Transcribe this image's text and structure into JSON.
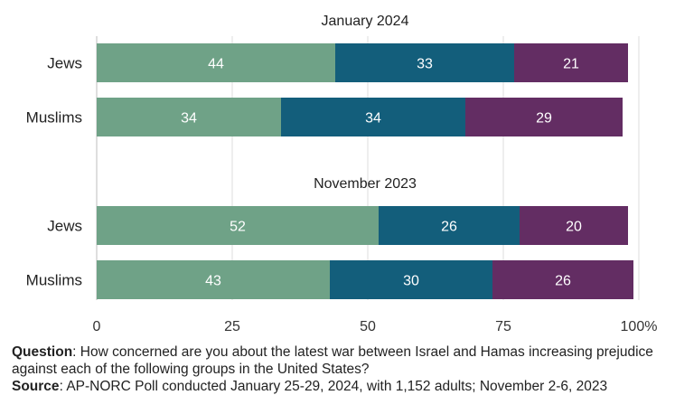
{
  "chart_data": {
    "type": "bar",
    "orientation": "horizontal",
    "stacked": true,
    "xlim": [
      0,
      100
    ],
    "x_ticks": [
      "0",
      "25",
      "50",
      "75",
      "100%"
    ],
    "grid": true,
    "colors": [
      "#6fa287",
      "#135e7b",
      "#632d63"
    ],
    "panels": [
      {
        "title": "January 2024",
        "categories": [
          "Jews",
          "Muslims"
        ],
        "series": [
          {
            "values": [
              44,
              34
            ]
          },
          {
            "values": [
              33,
              34
            ]
          },
          {
            "values": [
              21,
              29
            ]
          }
        ]
      },
      {
        "title": "November 2023",
        "categories": [
          "Jews",
          "Muslims"
        ],
        "series": [
          {
            "values": [
              52,
              43
            ]
          },
          {
            "values": [
              26,
              30
            ]
          },
          {
            "values": [
              20,
              26
            ]
          }
        ]
      }
    ]
  },
  "footnote": {
    "question_label": "Question",
    "question_text": ": How concerned are you about the latest war between Israel and Hamas increasing prejudice against each of the following groups in the United States?",
    "source_label": "Source",
    "source_text": ": AP-NORC Poll conducted January 25-29, 2024, with 1,152 adults; November 2-6, 2023"
  }
}
